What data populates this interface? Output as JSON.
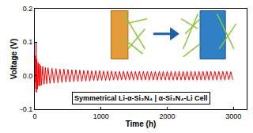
{
  "chart_data": {
    "type": "line",
    "x_label": "Time (h)",
    "y_label": "Voltage (V)",
    "annotations": [
      "Symmetrical Li-α-Si₃N₄ | α-Si₃N₄-Li Cell"
    ],
    "color": "#ff0000",
    "xlim": [
      0,
      3200
    ],
    "xticks": [
      0,
      1000,
      2000,
      3000
    ],
    "ylim": [
      -0.1,
      0.2
    ],
    "yticks": [
      -0.1,
      {
        "value": 0,
        "label": "0.0"
      },
      0.1,
      0.2
    ],
    "grid": false,
    "x": [
      0,
      3,
      6,
      10,
      15,
      20,
      25,
      30,
      40,
      50,
      60,
      70,
      80,
      90,
      100,
      120,
      140,
      160,
      180,
      200,
      230,
      260,
      290,
      320,
      350,
      380,
      410,
      440,
      470,
      500,
      530,
      560,
      590,
      620,
      650,
      680,
      710,
      740,
      770,
      800,
      830,
      860,
      890,
      920,
      950,
      980,
      1010,
      1040,
      1070,
      1100,
      1130,
      1160,
      1190,
      1220,
      1250,
      1280,
      1310,
      1340,
      1370,
      1400,
      1430,
      1460,
      1490,
      1520,
      1550,
      1580,
      1610,
      1640,
      1670,
      1700,
      1730,
      1760,
      1790,
      1820,
      1850,
      1880,
      1910,
      1940,
      1970,
      2000,
      2030,
      2060,
      2090,
      2120,
      2150,
      2180,
      2210,
      2240,
      2270,
      2300,
      2330,
      2360,
      2390,
      2420,
      2450,
      2480,
      2510,
      2540,
      2570,
      2600,
      2630,
      2660,
      2690,
      2720,
      2750,
      2780,
      2810,
      2840,
      2870,
      2900,
      2930,
      2960,
      2990
    ],
    "values": [
      0.0,
      0.02,
      -0.02,
      0.06,
      -0.04,
      0.1,
      -0.05,
      0.05,
      -0.04,
      0.04,
      -0.03,
      0.035,
      -0.03,
      0.03,
      -0.028,
      0.028,
      -0.025,
      0.025,
      -0.024,
      0.024,
      -0.023,
      0.022,
      -0.022,
      0.021,
      -0.021,
      0.02,
      -0.02,
      0.02,
      -0.019,
      0.019,
      -0.019,
      0.018,
      -0.018,
      0.018,
      -0.017,
      0.017,
      -0.017,
      0.016,
      -0.016,
      0.016,
      -0.016,
      0.015,
      -0.015,
      0.015,
      -0.015,
      0.015,
      -0.014,
      0.014,
      -0.014,
      0.014,
      -0.014,
      0.014,
      -0.013,
      0.013,
      -0.013,
      0.013,
      -0.013,
      0.013,
      -0.013,
      0.013,
      -0.013,
      0.013,
      -0.013,
      0.013,
      -0.013,
      0.013,
      -0.013,
      0.013,
      -0.013,
      0.013,
      -0.013,
      0.013,
      -0.013,
      0.013,
      -0.013,
      0.013,
      -0.013,
      0.013,
      -0.013,
      0.013,
      -0.013,
      0.013,
      -0.013,
      0.013,
      -0.013,
      0.013,
      -0.013,
      0.013,
      -0.013,
      0.013,
      -0.013,
      0.013,
      -0.013,
      0.013,
      -0.013,
      0.013,
      -0.013,
      0.013,
      -0.013,
      0.013,
      -0.013,
      0.013,
      -0.013,
      0.013,
      -0.013,
      0.013,
      -0.013,
      0.013,
      -0.013,
      0.013,
      -0.012,
      0.012,
      -0.012
    ]
  }
}
